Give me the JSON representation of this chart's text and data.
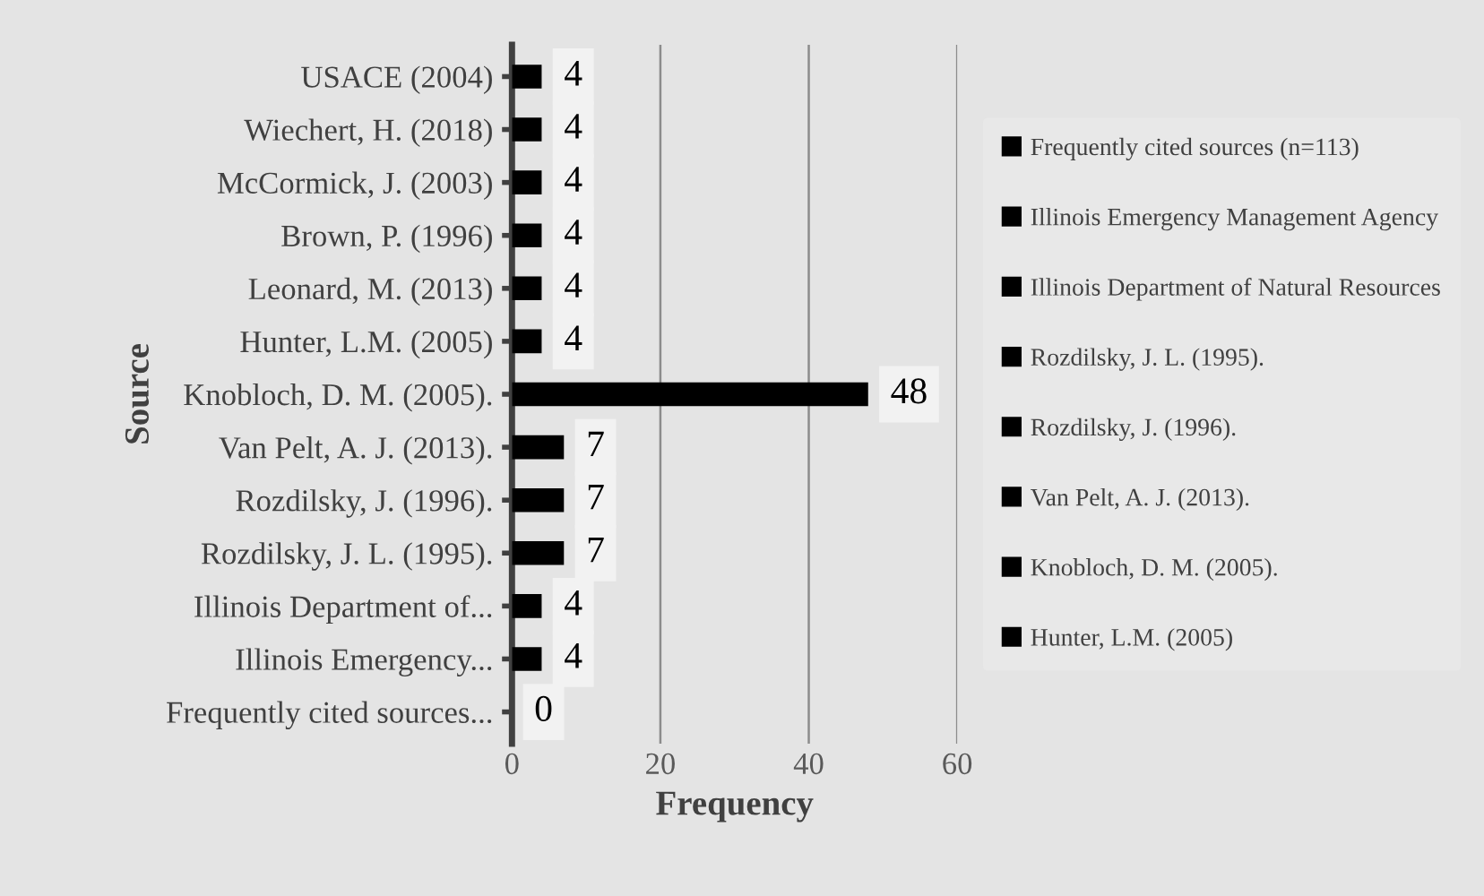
{
  "chart_data": {
    "type": "bar",
    "orientation": "horizontal",
    "stacked": true,
    "xlabel": "Frequency",
    "ylabel": "Source",
    "categories": [
      "USACE (2004)",
      "Wiechert, H. (2018)",
      "McCormick, J. (2003)",
      "Brown, P. (1996)",
      "Leonard, M. (2013)",
      "Hunter, L.M. (2005)",
      "Knobloch, D. M. (2005).",
      "Van Pelt, A. J. (2013).",
      "Rozdilsky, J. (1996).",
      "Rozdilsky, J. L. (1995).",
      "Illinois Department of...",
      "Illinois Emergency...",
      "Frequently cited sources..."
    ],
    "series": [
      {
        "name": "Frequently cited sources (n=113)",
        "color": "#000000",
        "values": [
          null,
          null,
          null,
          null,
          null,
          null,
          null,
          null,
          null,
          null,
          null,
          null,
          0
        ]
      },
      {
        "name": "Illinois Emergency Management Agency",
        "color": "#000000",
        "values": [
          null,
          null,
          null,
          null,
          null,
          null,
          null,
          null,
          null,
          null,
          null,
          4,
          null
        ]
      },
      {
        "name": "Illinois Department of Natural Resources",
        "color": "#000000",
        "values": [
          null,
          null,
          null,
          null,
          null,
          null,
          null,
          null,
          null,
          null,
          4,
          null,
          null
        ]
      },
      {
        "name": "Rozdilsky, J. L. (1995).",
        "color": "#000000",
        "values": [
          null,
          null,
          null,
          null,
          null,
          null,
          null,
          null,
          null,
          7,
          null,
          null,
          null
        ]
      },
      {
        "name": "Rozdilsky, J. (1996).",
        "color": "#000000",
        "values": [
          null,
          null,
          null,
          null,
          null,
          null,
          null,
          null,
          7,
          null,
          null,
          null,
          null
        ]
      },
      {
        "name": "Van Pelt, A. J. (2013).",
        "color": "#000000",
        "values": [
          null,
          null,
          null,
          null,
          null,
          null,
          null,
          7,
          null,
          null,
          null,
          null,
          null
        ]
      },
      {
        "name": "Knobloch, D. M. (2005).",
        "color": "#000000",
        "values": [
          null,
          null,
          null,
          null,
          null,
          null,
          48,
          null,
          null,
          null,
          null,
          null,
          null
        ]
      },
      {
        "name": "Hunter, L.M. (2005)",
        "color": "#000000",
        "values": [
          null,
          null,
          null,
          null,
          null,
          4,
          null,
          null,
          null,
          null,
          null,
          null,
          null
        ]
      },
      {
        "color": "#000000",
        "values": [
          null,
          null,
          null,
          null,
          4,
          null,
          null,
          null,
          null,
          null,
          null,
          null,
          null
        ]
      },
      {
        "color": "#000000",
        "values": [
          null,
          null,
          null,
          4,
          null,
          null,
          null,
          null,
          null,
          null,
          null,
          null,
          null
        ]
      },
      {
        "color": "#000000",
        "values": [
          null,
          null,
          4,
          null,
          null,
          null,
          null,
          null,
          null,
          null,
          null,
          null,
          null
        ]
      },
      {
        "color": "#000000",
        "values": [
          null,
          4,
          null,
          null,
          null,
          null,
          null,
          null,
          null,
          null,
          null,
          null,
          null
        ]
      },
      {
        "color": "#000000",
        "values": [
          4,
          null,
          null,
          null,
          null,
          null,
          null,
          null,
          null,
          null,
          null,
          null,
          null
        ]
      }
    ],
    "xlim": [
      0,
      60
    ],
    "xticks": [
      0,
      20,
      40,
      60
    ],
    "grid": "x",
    "legend": "right",
    "data_labels": true
  }
}
